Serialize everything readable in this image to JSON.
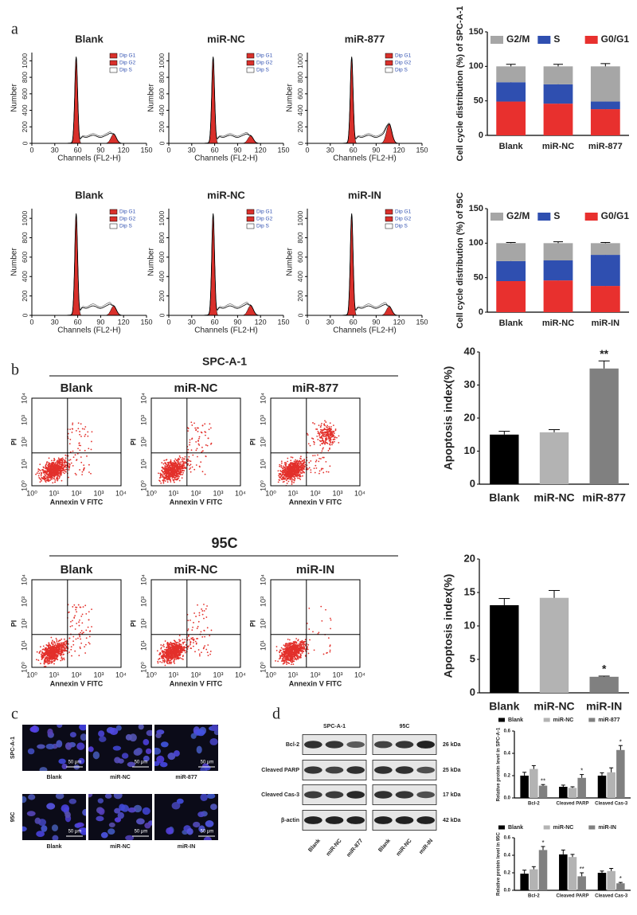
{
  "panel_labels": [
    "a",
    "b",
    "c",
    "d"
  ],
  "cell_cycle": {
    "rows": [
      [
        "Blank",
        "miR-NC",
        "miR-877"
      ],
      [
        "Blank",
        "miR-NC",
        "miR-IN"
      ]
    ],
    "xlabel": "Channels (FL2-H)",
    "ylabel": "Number",
    "xlim": [
      0,
      150
    ],
    "ylim": [
      0,
      1100
    ],
    "xticks": [
      0,
      30,
      60,
      90,
      120,
      150
    ],
    "yticks": [
      0,
      200,
      400,
      600,
      800,
      1000
    ],
    "legend": [
      "Dip G1",
      "Dip G2",
      "Dip S"
    ]
  },
  "apoptosis_flow": {
    "groups": [
      {
        "title": "SPC-A-1",
        "panels": [
          "Blank",
          "miR-NC",
          "miR-877"
        ]
      },
      {
        "title": "95C",
        "panels": [
          "Blank",
          "miR-NC",
          "miR-IN"
        ]
      }
    ],
    "xlabel": "Annexin V FITC",
    "ylabel": "PI",
    "ticks": [
      "10⁰",
      "10¹",
      "10²",
      "10³",
      "10⁴"
    ]
  },
  "microscopy": {
    "rows": [
      {
        "label": "SPC-A-1",
        "columns": [
          "Blank",
          "miR-NC",
          "miR-877"
        ]
      },
      {
        "label": "95C",
        "columns": [
          "Blank",
          "miR-NC",
          "miR-IN"
        ]
      }
    ],
    "scale_bar": "50 μm"
  },
  "western_blot": {
    "groups": [
      {
        "title": "SPC-A-1",
        "lanes": [
          "Blank",
          "miR-NC",
          "miR-877"
        ]
      },
      {
        "title": "95C",
        "lanes": [
          "Blank",
          "miR-NC",
          "miR-IN"
        ]
      }
    ],
    "proteins": [
      {
        "name": "Bcl-2",
        "size": "26 kDa"
      },
      {
        "name": "Cleaved PARP",
        "size": "25 kDa"
      },
      {
        "name": "Cleaved Cas-3",
        "size": "17 kDa"
      },
      {
        "name": "β-actin",
        "size": "42 kDa"
      }
    ]
  },
  "chart_data": [
    {
      "type": "bar",
      "stacked": true,
      "ylabel": "Cell cycle distribution (%) of SPC-A-1",
      "categories": [
        "Blank",
        "miR-NC",
        "miR-877"
      ],
      "series": [
        {
          "name": "G2/M",
          "color": "#a6a6a6",
          "values": [
            23,
            26,
            51
          ],
          "errors": [
            3,
            3,
            4
          ]
        },
        {
          "name": "S",
          "color": "#2f4fb0",
          "values": [
            28,
            28,
            11
          ],
          "errors": [
            2,
            2,
            2
          ]
        },
        {
          "name": "G0/G1",
          "color": "#e8302e",
          "values": [
            49,
            46,
            38
          ],
          "errors": [
            3,
            2,
            1
          ]
        }
      ],
      "ylim": [
        0,
        150
      ],
      "yticks": [
        0,
        50,
        100,
        150
      ]
    },
    {
      "type": "bar",
      "stacked": true,
      "ylabel": "Cell cycle distribution (%) of 95C",
      "categories": [
        "Blank",
        "miR-NC",
        "miR-IN"
      ],
      "series": [
        {
          "name": "G2/M",
          "color": "#a6a6a6",
          "values": [
            26,
            25,
            17
          ],
          "errors": [
            1,
            2,
            1
          ]
        },
        {
          "name": "S",
          "color": "#2f4fb0",
          "values": [
            29,
            29,
            45
          ],
          "errors": [
            2,
            2,
            2
          ]
        },
        {
          "name": "G0/G1",
          "color": "#e8302e",
          "values": [
            45,
            46,
            38
          ],
          "errors": [
            1,
            1,
            2
          ]
        }
      ],
      "ylim": [
        0,
        150
      ],
      "yticks": [
        0,
        50,
        100,
        150
      ]
    },
    {
      "type": "bar",
      "ylabel": "Apoptosis index(%)",
      "categories": [
        "Blank",
        "miR-NC",
        "miR-877"
      ],
      "values": [
        15,
        15.7,
        35
      ],
      "errors": [
        1,
        0.8,
        2.3
      ],
      "colors": [
        "#000000",
        "#b3b3b3",
        "#808080"
      ],
      "annotations": [
        null,
        null,
        "**"
      ],
      "ylim": [
        0,
        40
      ],
      "yticks": [
        0,
        10,
        20,
        30,
        40
      ]
    },
    {
      "type": "bar",
      "ylabel": "Apoptosis index(%)",
      "categories": [
        "Blank",
        "miR-NC",
        "miR-IN"
      ],
      "values": [
        13.1,
        14.2,
        2.4
      ],
      "errors": [
        1,
        1.1,
        0.1
      ],
      "colors": [
        "#000000",
        "#b3b3b3",
        "#808080"
      ],
      "annotations": [
        null,
        null,
        "*"
      ],
      "ylim": [
        0,
        20
      ],
      "yticks": [
        0,
        5,
        10,
        15,
        20
      ]
    },
    {
      "type": "bar",
      "ylabel": "Relative protein level in SPC-A-1",
      "categories": [
        "Bcl-2",
        "Cleaved PARP",
        "Cleaved Cas-3"
      ],
      "series": [
        {
          "name": "Blank",
          "color": "#000000",
          "values": [
            0.2,
            0.1,
            0.2
          ],
          "errors": [
            0.03,
            0.015,
            0.025
          ]
        },
        {
          "name": "miR-NC",
          "color": "#b3b3b3",
          "values": [
            0.26,
            0.09,
            0.23
          ],
          "errors": [
            0.03,
            0.01,
            0.04
          ]
        },
        {
          "name": "miR-877",
          "color": "#808080",
          "values": [
            0.11,
            0.18,
            0.43
          ],
          "errors": [
            0.01,
            0.03,
            0.04
          ],
          "annotations": [
            "**",
            "*",
            "*"
          ]
        }
      ],
      "ylim": [
        0,
        0.6
      ],
      "yticks": [
        {
          "value": 0,
          "label": "0.0"
        },
        0.2,
        0.4,
        0.6
      ]
    },
    {
      "type": "bar",
      "ylabel": "Relative protein level in 95C",
      "categories": [
        "Bcl-2",
        "Cleaved PARP",
        "Cleaved Cas-3"
      ],
      "series": [
        {
          "name": "Blank",
          "color": "#000000",
          "values": [
            0.19,
            0.41,
            0.2
          ],
          "errors": [
            0.04,
            0.05,
            0.02
          ]
        },
        {
          "name": "miR-NC",
          "color": "#b3b3b3",
          "values": [
            0.24,
            0.38,
            0.22
          ],
          "errors": [
            0.03,
            0.03,
            0.03
          ]
        },
        {
          "name": "miR-IN",
          "color": "#808080",
          "values": [
            0.46,
            0.16,
            0.08
          ],
          "errors": [
            0.04,
            0.04,
            0.01
          ],
          "annotations": [
            "*",
            "**",
            "*"
          ]
        }
      ],
      "ylim": [
        0,
        0.6
      ],
      "yticks": [
        {
          "value": 0,
          "label": "0.0"
        },
        0.2,
        0.4,
        0.6
      ]
    }
  ]
}
